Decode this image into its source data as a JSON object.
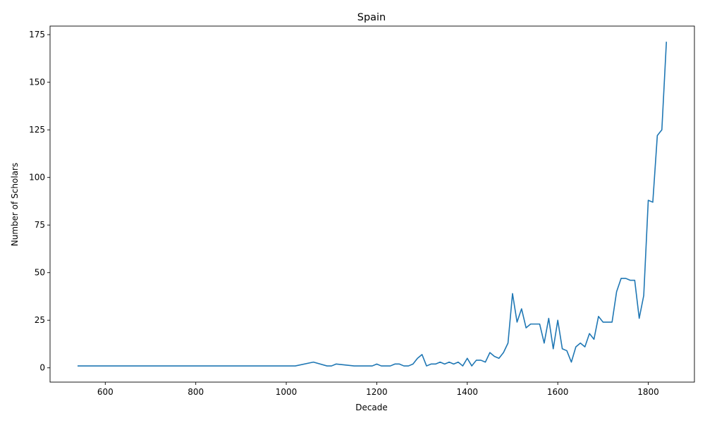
{
  "chart_data": {
    "type": "line",
    "title": "Spain",
    "xlabel": "Decade",
    "ylabel": "Number of Scholars",
    "xlim": [
      478,
      1902
    ],
    "ylim": [
      -7.5,
      179.5
    ],
    "xticks": [
      600,
      800,
      1000,
      1200,
      1400,
      1600,
      1800
    ],
    "yticks": [
      0,
      25,
      50,
      75,
      100,
      125,
      150,
      175
    ],
    "grid": false,
    "legend": "none",
    "line_color": "#1f77b4",
    "series": [
      {
        "x": [
          540,
          1020,
          1060,
          1090,
          1100,
          1110,
          1150,
          1190,
          1200,
          1210,
          1230,
          1240,
          1250,
          1260,
          1270,
          1280,
          1290,
          1300,
          1310,
          1320,
          1330,
          1340,
          1350,
          1360,
          1370,
          1380,
          1390,
          1400,
          1410,
          1420,
          1430,
          1440,
          1450,
          1460,
          1470,
          1480,
          1490,
          1500,
          1510,
          1520,
          1530,
          1540,
          1550,
          1560,
          1570,
          1580,
          1590,
          1600,
          1610,
          1620,
          1630,
          1640,
          1650,
          1660,
          1670,
          1680,
          1690,
          1700,
          1710,
          1720,
          1730,
          1740,
          1750,
          1760,
          1770,
          1780,
          1790,
          1800,
          1810,
          1820,
          1830,
          1840
        ],
        "y": [
          1,
          1,
          3,
          1,
          1,
          2,
          1,
          1,
          2,
          1,
          1,
          2,
          2,
          1,
          1,
          2,
          5,
          7,
          1,
          2,
          2,
          3,
          2,
          3,
          2,
          3,
          1,
          5,
          1,
          4,
          4,
          3,
          8,
          6,
          5,
          8,
          13,
          39,
          24,
          31,
          21,
          23,
          23,
          23,
          13,
          26,
          10,
          25,
          10,
          9,
          3,
          11,
          13,
          11,
          18,
          15,
          27,
          24,
          24,
          24,
          40,
          47,
          47,
          46,
          46,
          26,
          38,
          88,
          87,
          122,
          125,
          171
        ]
      }
    ]
  }
}
